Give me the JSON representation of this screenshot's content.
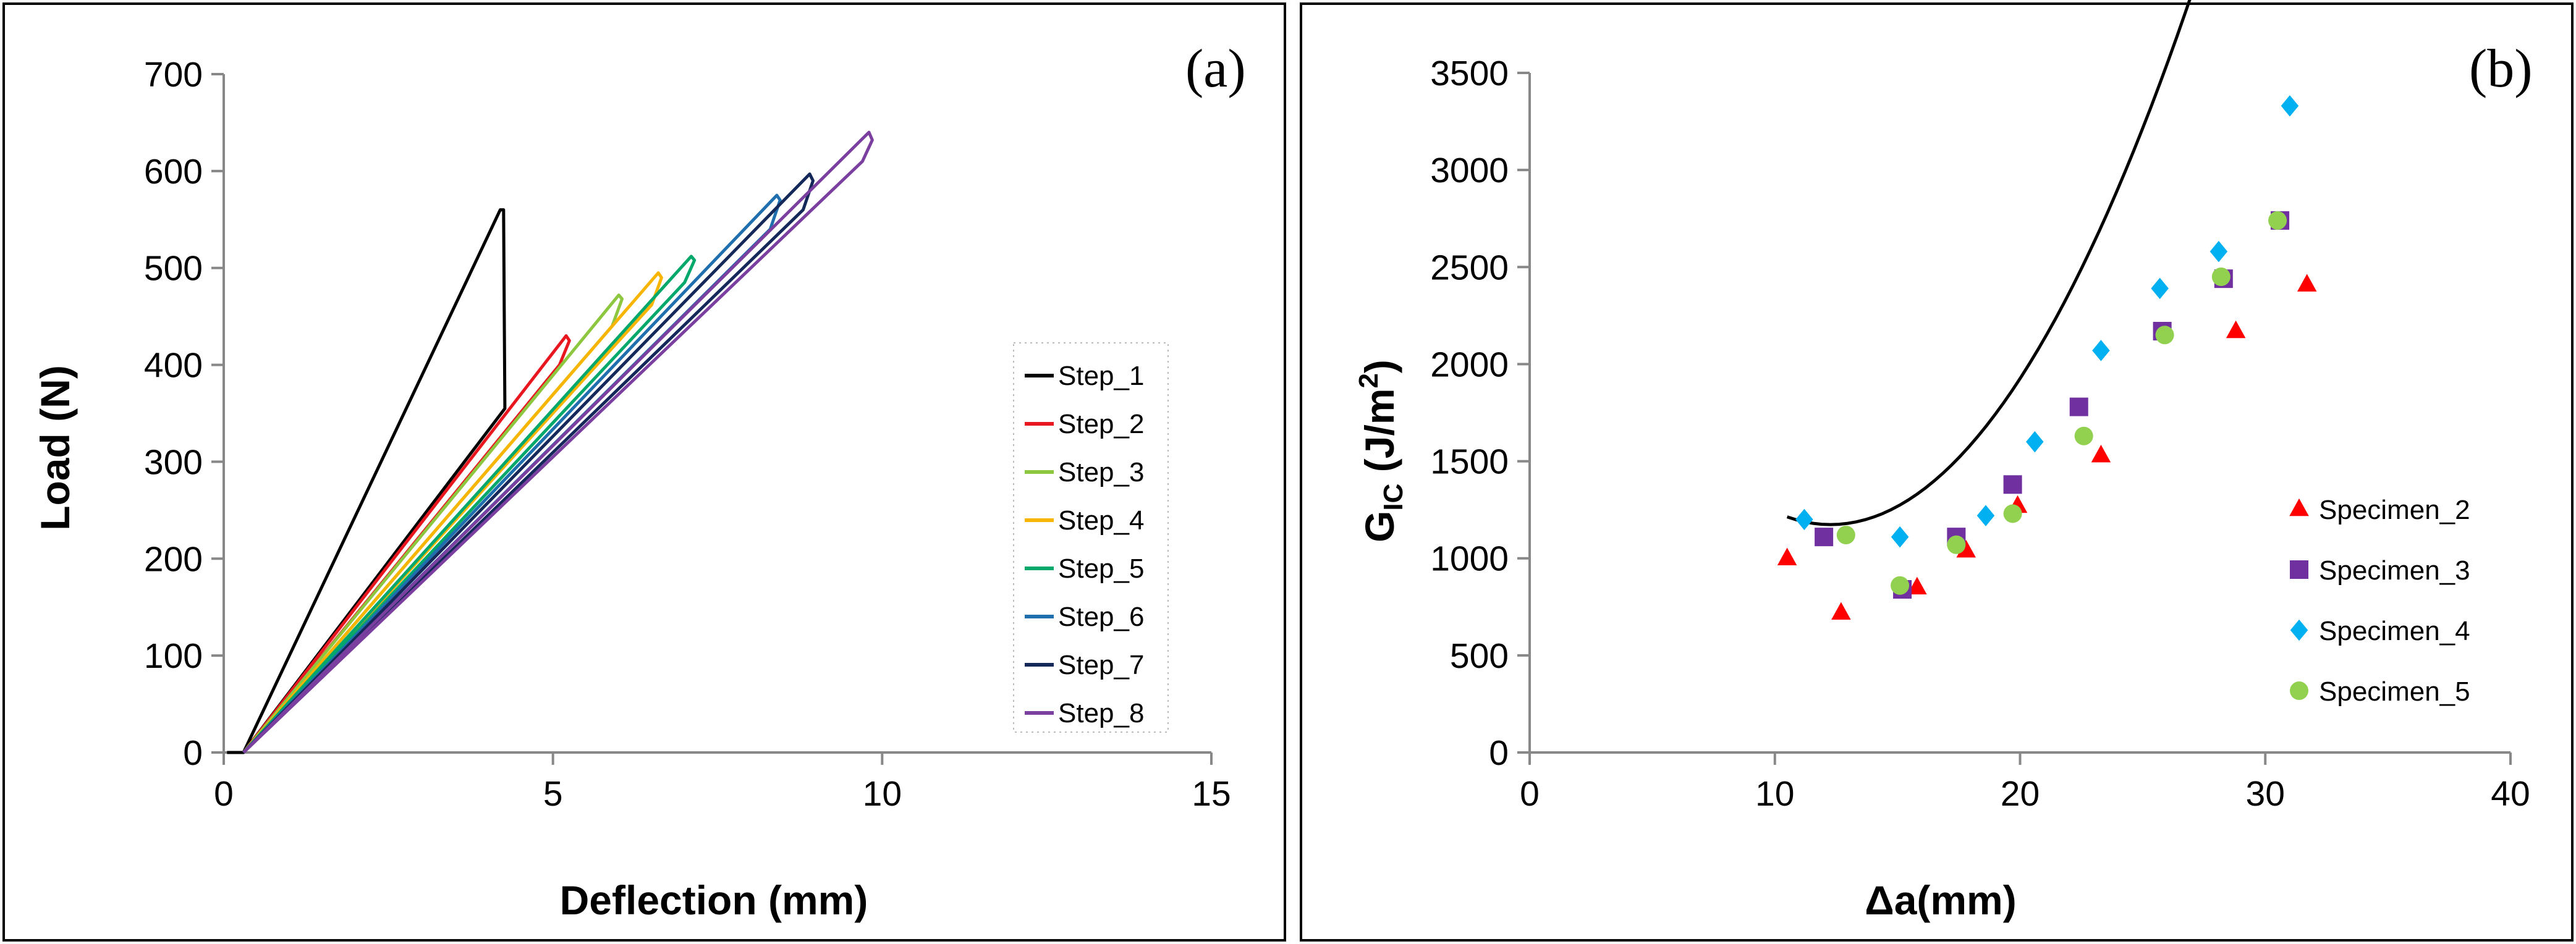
{
  "chart_data": [
    {
      "type": "line",
      "panel_label": "(a)",
      "xlabel": "Deflection (mm)",
      "ylabel": "Load (N)",
      "xlim": [
        0,
        15
      ],
      "ylim": [
        0,
        700
      ],
      "xticks": [
        "0",
        "5",
        "10",
        "15"
      ],
      "yticks": [
        "0",
        "100",
        "200",
        "300",
        "400",
        "500",
        "600",
        "700"
      ],
      "legend_position": "center-right",
      "series": [
        {
          "name": "Step_1",
          "color": "#000000",
          "points": [
            [
              0.05,
              0
            ],
            [
              0.3,
              0
            ],
            [
              4.2,
              560
            ],
            [
              4.25,
              560
            ],
            [
              4.27,
              355
            ],
            [
              0.3,
              0
            ]
          ]
        },
        {
          "name": "Step_2",
          "color": "#e8171f",
          "points": [
            [
              0.3,
              0
            ],
            [
              5.2,
              430
            ],
            [
              5.25,
              425
            ],
            [
              5.1,
              400
            ],
            [
              0.3,
              0
            ]
          ]
        },
        {
          "name": "Step_3",
          "color": "#8dc63f",
          "points": [
            [
              0.3,
              0
            ],
            [
              6.0,
              472
            ],
            [
              6.05,
              468
            ],
            [
              5.9,
              440
            ],
            [
              0.3,
              0
            ]
          ]
        },
        {
          "name": "Step_4",
          "color": "#f7b500",
          "points": [
            [
              0.3,
              0
            ],
            [
              6.6,
              495
            ],
            [
              6.65,
              490
            ],
            [
              6.5,
              462
            ],
            [
              0.3,
              0
            ]
          ]
        },
        {
          "name": "Step_5",
          "color": "#00a86b",
          "points": [
            [
              0.3,
              0
            ],
            [
              7.1,
              512
            ],
            [
              7.15,
              508
            ],
            [
              7.0,
              485
            ],
            [
              0.3,
              0
            ]
          ]
        },
        {
          "name": "Step_6",
          "color": "#1f6fae",
          "points": [
            [
              0.3,
              0
            ],
            [
              8.4,
              575
            ],
            [
              8.45,
              570
            ],
            [
              8.3,
              540
            ],
            [
              0.3,
              0
            ]
          ]
        },
        {
          "name": "Step_7",
          "color": "#14285a",
          "points": [
            [
              0.3,
              0
            ],
            [
              8.9,
              597
            ],
            [
              8.95,
              590
            ],
            [
              8.8,
              560
            ],
            [
              0.3,
              0
            ]
          ]
        },
        {
          "name": "Step_8",
          "color": "#7b3fa0",
          "points": [
            [
              0.3,
              0
            ],
            [
              9.8,
              640
            ],
            [
              9.85,
              632
            ],
            [
              9.7,
              610
            ],
            [
              0.3,
              0
            ]
          ]
        }
      ]
    },
    {
      "type": "scatter",
      "panel_label": "(b)",
      "xlabel": "Δa(mm)",
      "ylabel_main": "G",
      "ylabel_sub": "IC",
      "ylabel_rest": " (J/m",
      "ylabel_sup": "2",
      "ylabel_end": ")",
      "xlim": [
        0,
        40
      ],
      "ylim": [
        0,
        3500
      ],
      "xticks": [
        "0",
        "10",
        "20",
        "30",
        "40"
      ],
      "yticks": [
        "0",
        "500",
        "1000",
        "1500",
        "2000",
        "2500",
        "3000",
        "3500"
      ],
      "legend_position": "bottom-right",
      "series": [
        {
          "name": "Specimen_2",
          "marker": "triangle",
          "color": "#ff0000",
          "x": [
            10.5,
            12.7,
            15.8,
            17.8,
            19.9,
            23.3,
            28.8,
            31.7
          ],
          "y": [
            1000,
            720,
            850,
            1040,
            1270,
            1530,
            2170,
            2410
          ]
        },
        {
          "name": "Specimen_3",
          "marker": "square",
          "color": "#7030a0",
          "x": [
            12.0,
            15.2,
            17.4,
            19.7,
            22.4,
            25.8,
            28.3,
            30.6
          ],
          "y": [
            1110,
            840,
            1110,
            1380,
            1780,
            2170,
            2440,
            2740
          ]
        },
        {
          "name": "Specimen_4",
          "marker": "diamond",
          "color": "#00b0f0",
          "x": [
            11.2,
            15.1,
            18.6,
            20.6,
            23.3,
            25.7,
            28.1,
            31.0
          ],
          "y": [
            1200,
            1110,
            1220,
            1600,
            2070,
            2390,
            2580,
            3330
          ]
        },
        {
          "name": "Specimen_5",
          "marker": "circle",
          "color": "#92d050",
          "x": [
            12.9,
            15.1,
            17.4,
            19.7,
            22.6,
            25.9,
            28.2,
            30.5
          ],
          "y": [
            1120,
            860,
            1070,
            1230,
            1630,
            2150,
            2450,
            2740
          ]
        }
      ],
      "trendline": {
        "type": "polynomial",
        "coeffs": [
          3072,
          -309.3,
          12.6
        ],
        "x_range": [
          10.5,
          31.7
        ],
        "color": "#000000"
      }
    }
  ]
}
